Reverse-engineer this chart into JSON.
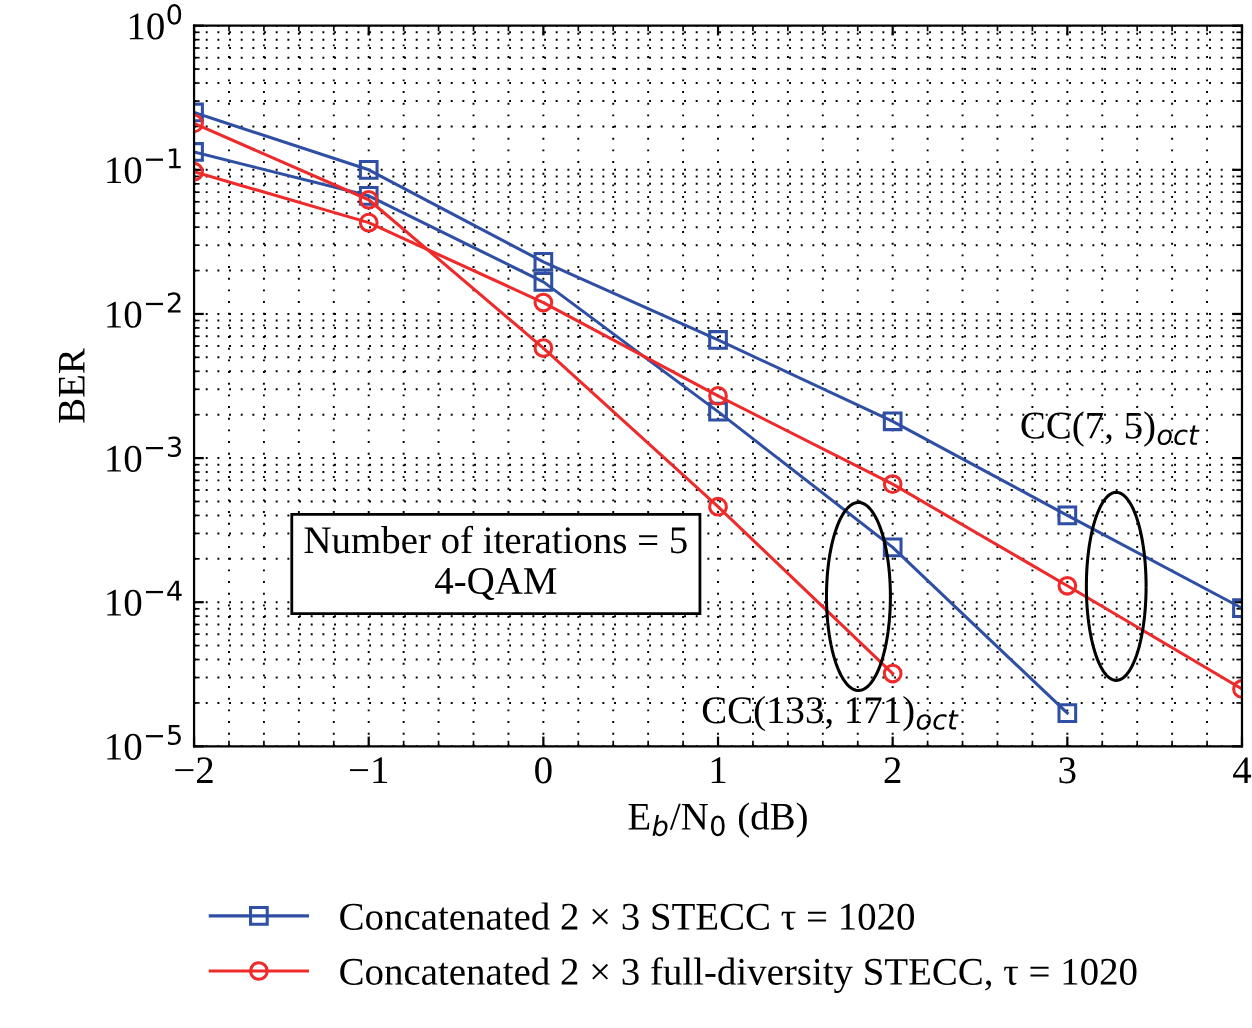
{
  "chart_data": {
    "type": "line",
    "xlabel": "E$_{b}$/N$_{0}$ (dB)",
    "ylabel": "BER",
    "x": [
      -2,
      -1,
      0,
      1,
      2,
      3,
      4
    ],
    "series": [
      {
        "name": "Concatenated 2 × 3 STECC τ = 1020",
        "color": "#2e4fa3",
        "marker": "square",
        "values": [
          0.25,
          0.1,
          0.023,
          0.0066,
          0.0018,
          0.0004,
          9.1e-05
        ]
      },
      {
        "color": "#2e4fa3",
        "marker": "square",
        "values": [
          0.133,
          0.066,
          0.0167,
          0.0021,
          0.00024,
          1.7e-05,
          null
        ]
      },
      {
        "name": "Concatenated 2 × 3 full-diversity STECC, τ = 1020",
        "color": "#ee2a2a",
        "marker": "circle",
        "values": [
          0.097,
          0.043,
          0.012,
          0.0027,
          0.00066,
          0.00013,
          2.5e-05
        ]
      },
      {
        "color": "#ee2a2a",
        "marker": "circle",
        "values": [
          0.21,
          0.062,
          0.0058,
          0.00046,
          3.2e-05,
          null,
          null
        ]
      }
    ],
    "log": "y",
    "xlim": [
      -2,
      4
    ],
    "xticks": [
      {
        "value": -2,
        "label": "−2"
      },
      {
        "value": -1,
        "label": "−1"
      },
      0,
      1,
      2,
      3,
      4
    ],
    "ylim": [
      1e-05,
      1
    ],
    "yticks": [
      {
        "value": 1e-05,
        "label": "10$^{−5}$"
      },
      {
        "value": 0.0001,
        "label": "10$^{−4}$"
      },
      {
        "value": 0.001,
        "label": "10$^{−3}$"
      },
      {
        "value": 0.01,
        "label": "10$^{−2}$"
      },
      {
        "value": 0.1,
        "label": "10$^{−1}$"
      },
      {
        "value": 1,
        "label": "10$^{0}$"
      }
    ],
    "grid": true,
    "legend": "bottom",
    "line_style": "solid",
    "annotations": [
      "Number of iterations = 5\n4-QAM",
      "CC(7, 5)$_{oct}$",
      "CC(133, 171)$_{oct}$"
    ]
  }
}
